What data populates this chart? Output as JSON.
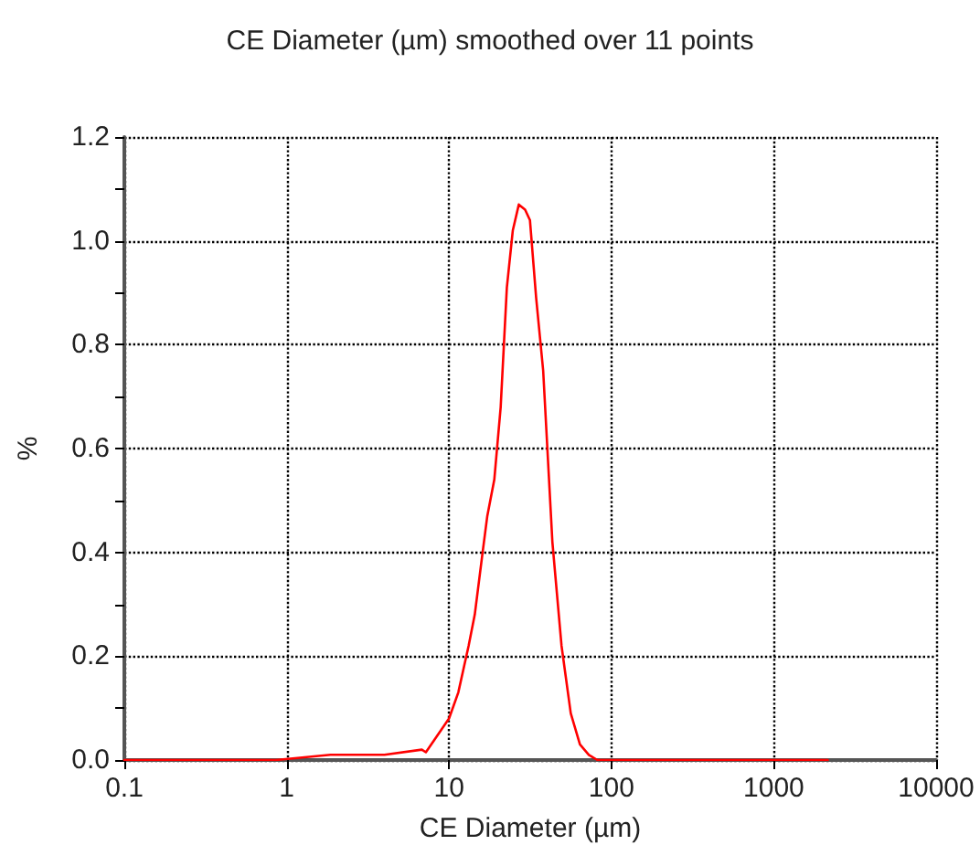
{
  "chart_data": {
    "type": "line",
    "title": "CE Diameter (µm) smoothed over 11 points",
    "xlabel": "CE Diameter (µm)",
    "ylabel": "%",
    "log": "x",
    "xlim": [
      0.1,
      10000
    ],
    "xticks": [
      0.1,
      1,
      10,
      100,
      1000,
      10000
    ],
    "ylim": [
      0,
      1.2
    ],
    "yticks": [
      {
        "value": 0,
        "label": "0.0"
      },
      {
        "value": 0.1,
        "label": null
      },
      {
        "value": 0.2,
        "label": "0.2"
      },
      {
        "value": 0.3,
        "label": null
      },
      {
        "value": 0.4,
        "label": "0.4"
      },
      {
        "value": 0.5,
        "label": null
      },
      {
        "value": 0.6,
        "label": "0.6"
      },
      {
        "value": 0.7,
        "label": null
      },
      {
        "value": 0.8,
        "label": "0.8"
      },
      {
        "value": 0.9,
        "label": null
      },
      {
        "value": 1.0,
        "label": "1.0"
      },
      {
        "value": 1.1,
        "label": null
      },
      {
        "value": 1.2,
        "label": "1.2"
      }
    ],
    "grid": true,
    "marker": "none",
    "line_style": "solid",
    "series": [
      {
        "color": "#ff0000",
        "x": [
          0.1,
          0.86,
          1.86,
          4,
          6.8,
          7.2,
          10,
          11.4,
          13.2,
          14.4,
          16.1,
          17.2,
          19,
          20.8,
          22.7,
          24.7,
          26.9,
          29.4,
          31.5,
          34.4,
          38,
          43.3,
          49.3,
          56.2,
          64,
          72.6,
          82,
          200,
          2150
        ],
        "values": [
          0,
          0,
          0.01,
          0.01,
          0.02,
          0.015,
          0.08,
          0.13,
          0.22,
          0.28,
          0.4,
          0.47,
          0.54,
          0.68,
          0.91,
          1.02,
          1.07,
          1.06,
          1.04,
          0.89,
          0.75,
          0.42,
          0.22,
          0.09,
          0.03,
          0.01,
          0,
          0,
          0
        ]
      }
    ]
  }
}
